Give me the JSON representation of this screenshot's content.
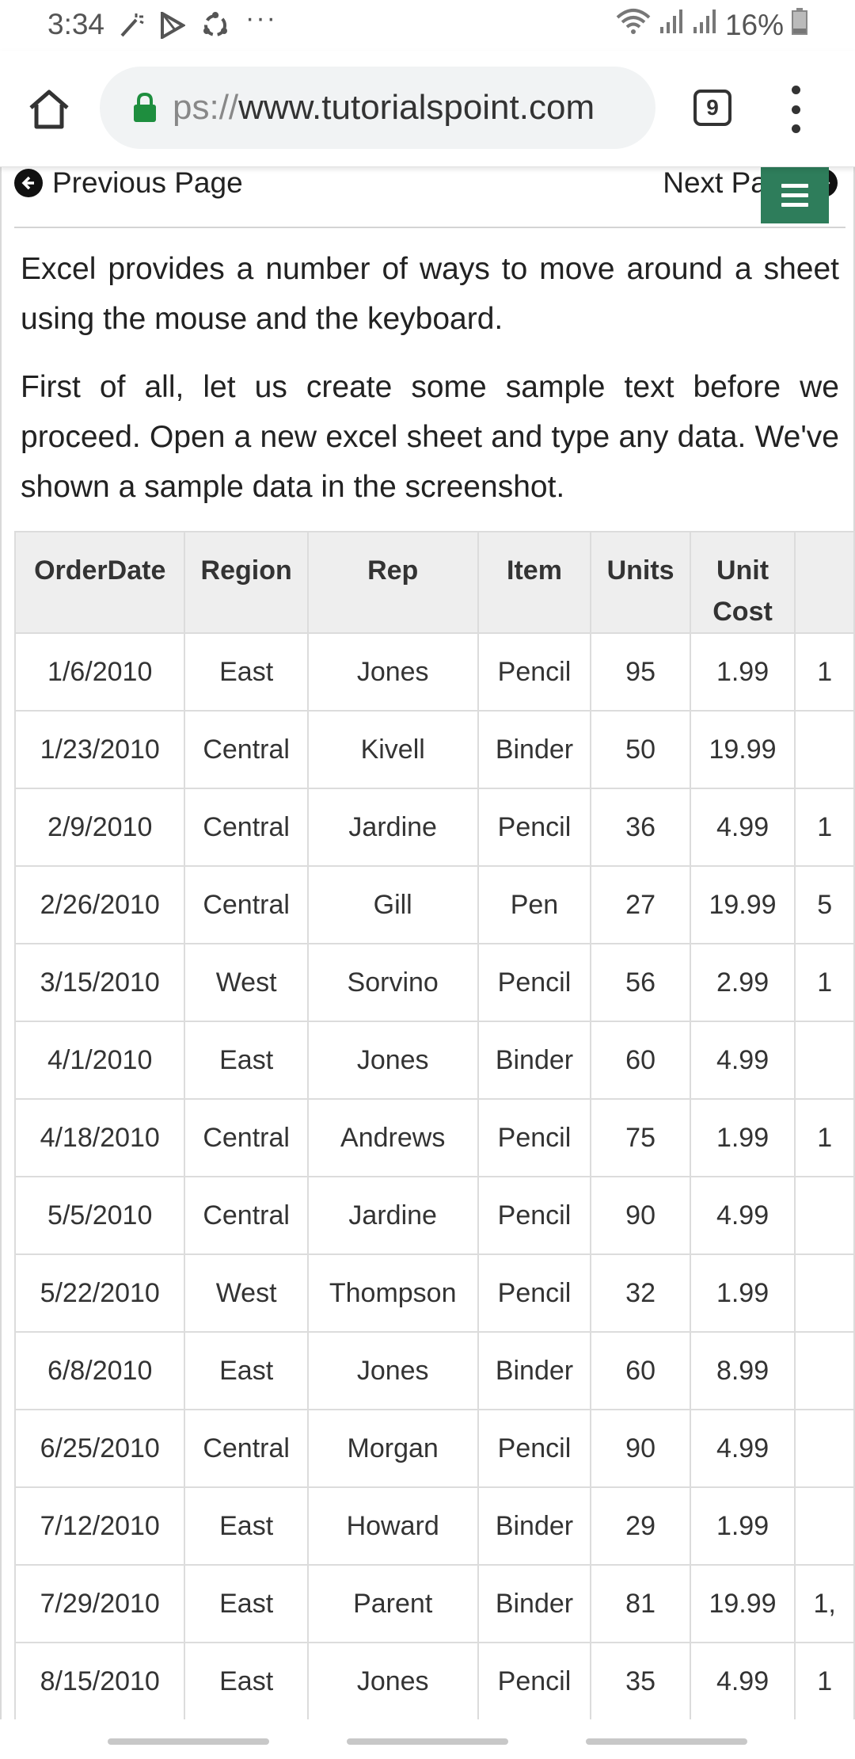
{
  "status_bar": {
    "time": "3:34",
    "overflow": "···",
    "battery": "16%",
    "icons_left": [
      "wand-icon",
      "play-store-icon",
      "sync-icon"
    ],
    "icons_right": [
      "wifi-icon",
      "signal-icon",
      "signal-icon",
      "battery-icon"
    ]
  },
  "browser": {
    "url_scheme_partial": "ps://",
    "url_host": "www.tutorialspoint.com",
    "tab_count": "9",
    "lock_color": "#1e8e3e"
  },
  "page": {
    "prev_label": "Previous Page",
    "next_label": "Next Page",
    "paragraph1": "Excel provides a number of ways to move around a sheet using the mouse and the keyboard.",
    "paragraph2": "First of all, let us create some sample text before we proceed. Open a new excel sheet and type any data. We've shown a sample data in the screenshot.",
    "accent_color": "#2e7d5b"
  },
  "table": {
    "headers": [
      "OrderDate",
      "Region",
      "Rep",
      "Item",
      "Units",
      "Unit Cost",
      ""
    ],
    "rows": [
      [
        "1/6/2010",
        "East",
        "Jones",
        "Pencil",
        "95",
        "1.99",
        "1"
      ],
      [
        "1/23/2010",
        "Central",
        "Kivell",
        "Binder",
        "50",
        "19.99",
        ""
      ],
      [
        "2/9/2010",
        "Central",
        "Jardine",
        "Pencil",
        "36",
        "4.99",
        "1"
      ],
      [
        "2/26/2010",
        "Central",
        "Gill",
        "Pen",
        "27",
        "19.99",
        "5"
      ],
      [
        "3/15/2010",
        "West",
        "Sorvino",
        "Pencil",
        "56",
        "2.99",
        "1"
      ],
      [
        "4/1/2010",
        "East",
        "Jones",
        "Binder",
        "60",
        "4.99",
        ""
      ],
      [
        "4/18/2010",
        "Central",
        "Andrews",
        "Pencil",
        "75",
        "1.99",
        "1"
      ],
      [
        "5/5/2010",
        "Central",
        "Jardine",
        "Pencil",
        "90",
        "4.99",
        ""
      ],
      [
        "5/22/2010",
        "West",
        "Thompson",
        "Pencil",
        "32",
        "1.99",
        ""
      ],
      [
        "6/8/2010",
        "East",
        "Jones",
        "Binder",
        "60",
        "8.99",
        ""
      ],
      [
        "6/25/2010",
        "Central",
        "Morgan",
        "Pencil",
        "90",
        "4.99",
        ""
      ],
      [
        "7/12/2010",
        "East",
        "Howard",
        "Binder",
        "29",
        "1.99",
        ""
      ],
      [
        "7/29/2010",
        "East",
        "Parent",
        "Binder",
        "81",
        "19.99",
        "1,"
      ],
      [
        "8/15/2010",
        "East",
        "Jones",
        "Pencil",
        "35",
        "4.99",
        "1"
      ]
    ]
  }
}
